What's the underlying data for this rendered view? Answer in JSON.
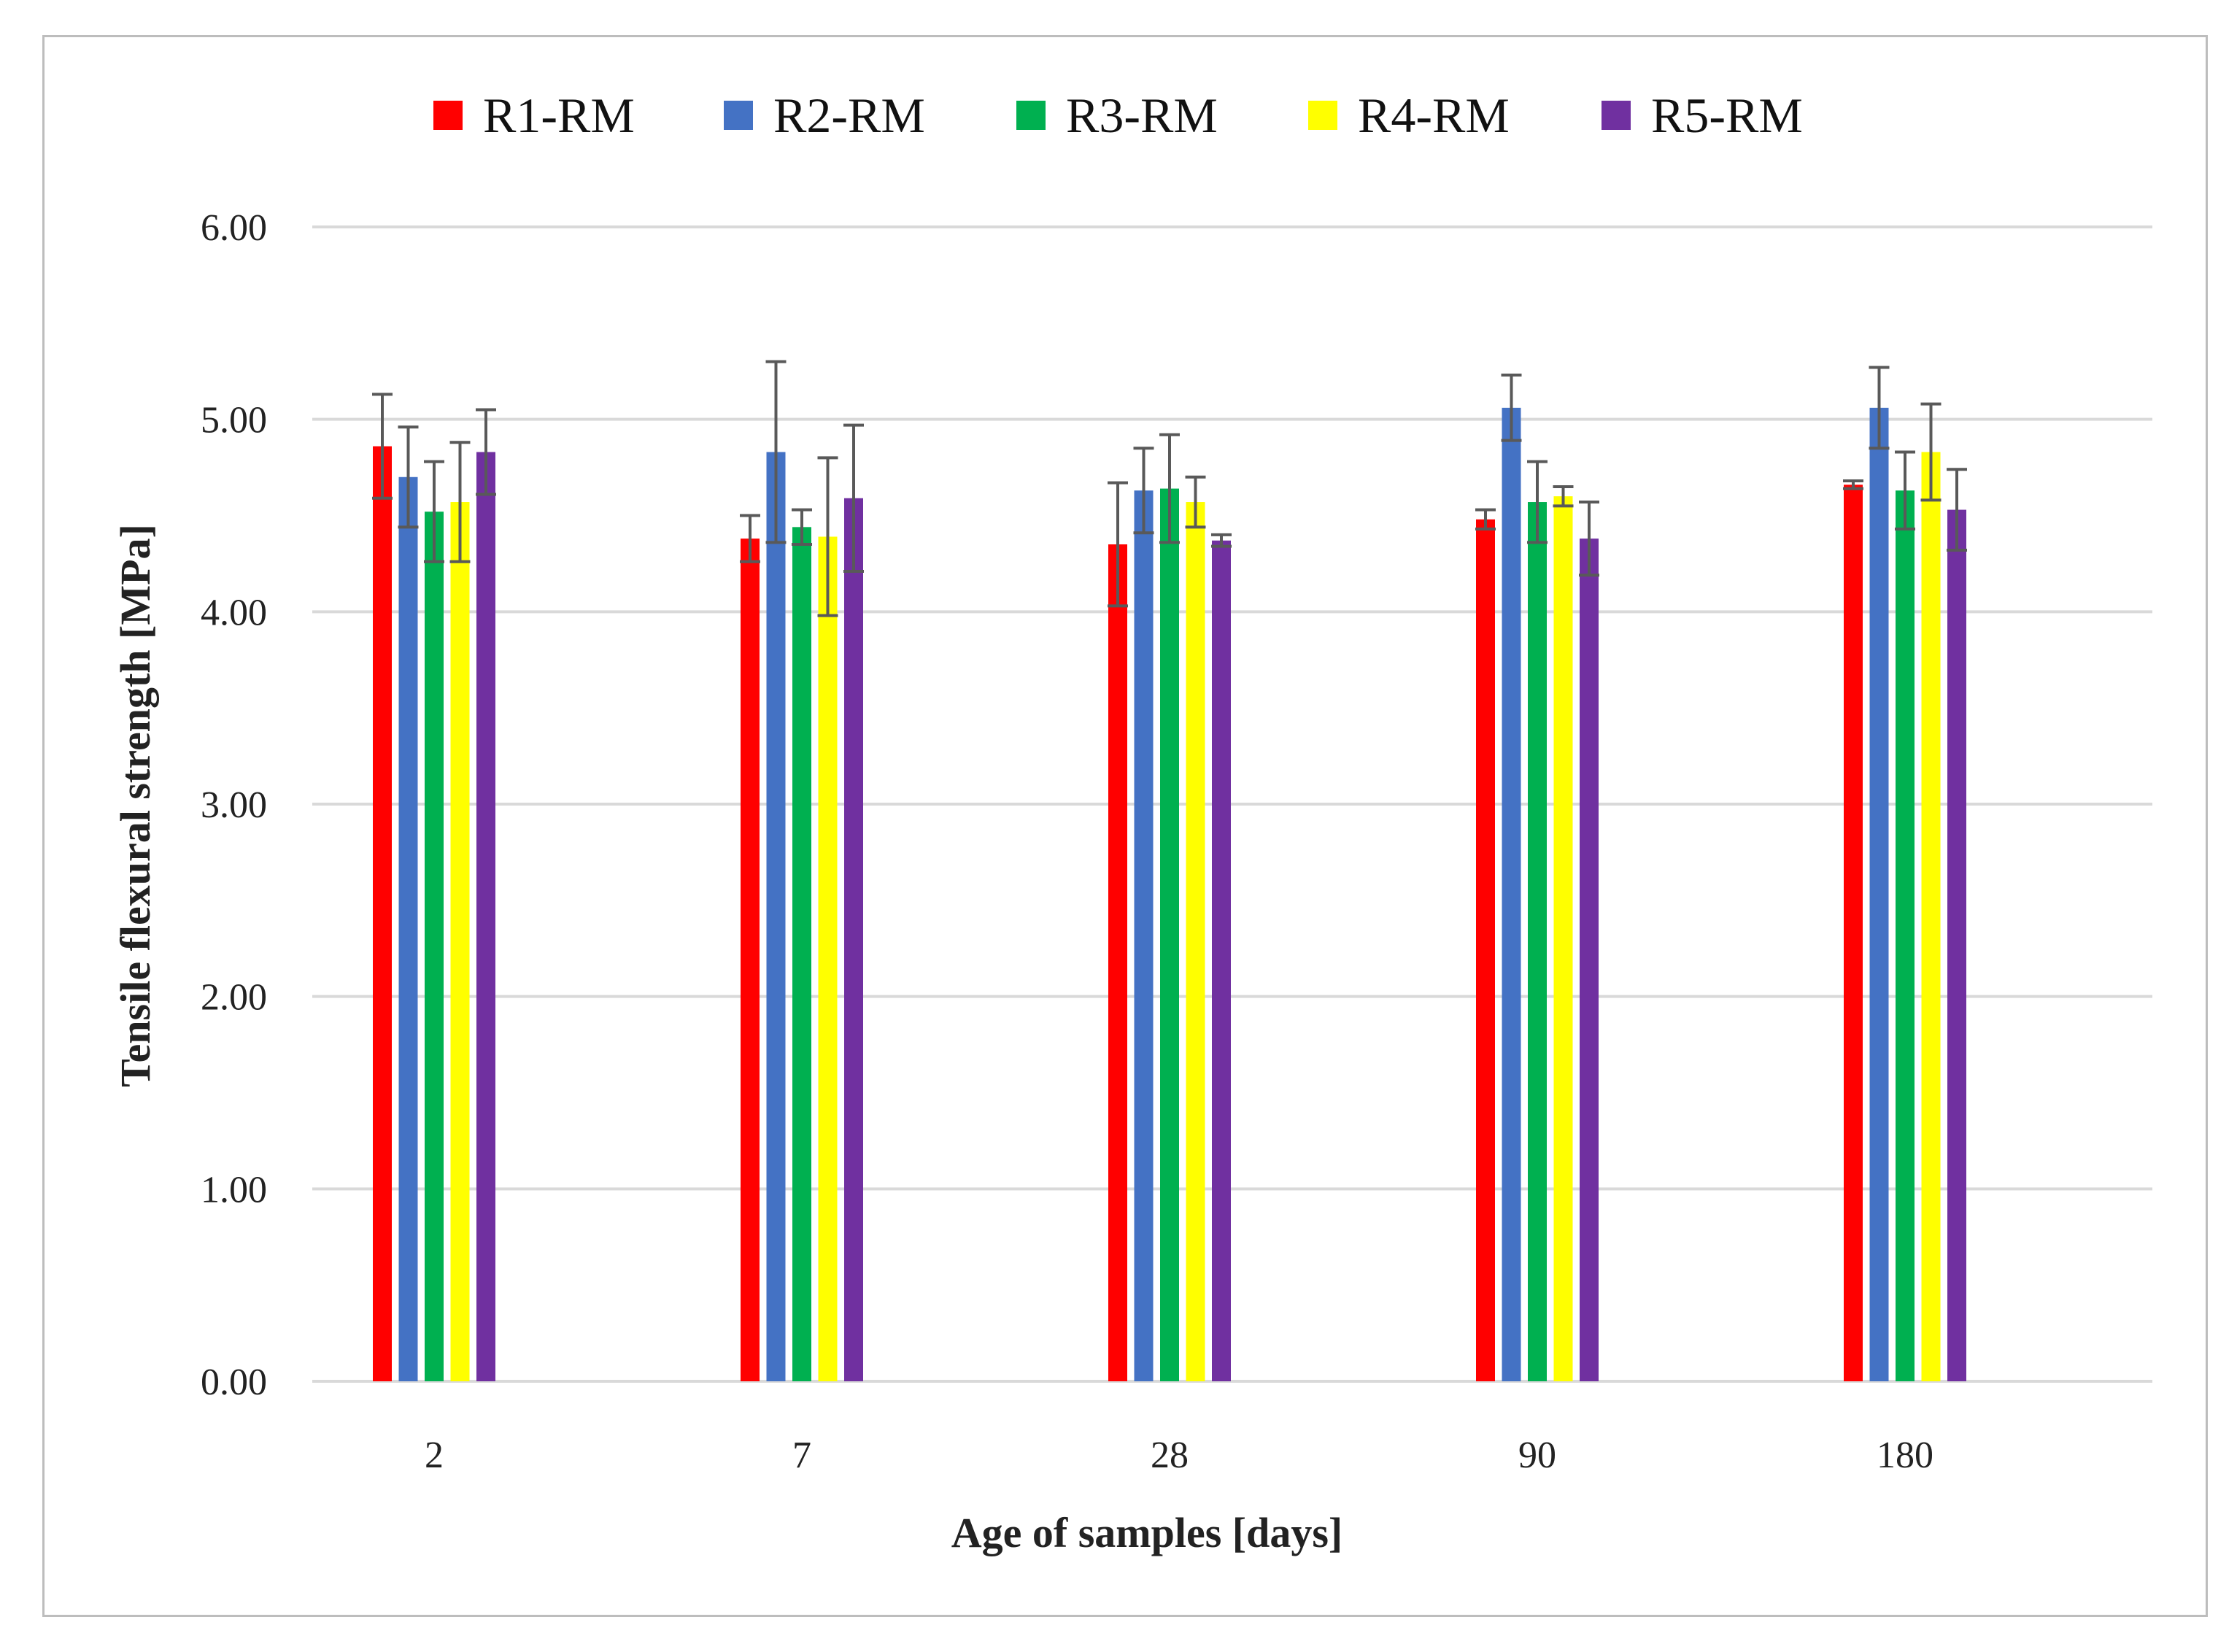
{
  "chart_data": {
    "type": "bar",
    "title": "",
    "xlabel": "Age of samples [days]",
    "ylabel": "Tensile flexural strength [MPa]",
    "ylim": [
      0,
      6
    ],
    "yticks": [
      "0.00",
      "1.00",
      "2.00",
      "3.00",
      "4.00",
      "5.00",
      "6.00"
    ],
    "categories": [
      "2",
      "7",
      "28",
      "90",
      "180"
    ],
    "grid": true,
    "legend_position": "top",
    "series": [
      {
        "name": "R1-RM",
        "color": "#ff0000",
        "values": [
          4.86,
          4.38,
          4.35,
          4.48,
          4.66
        ],
        "errors": [
          0.27,
          0.12,
          0.32,
          0.05,
          0.02
        ]
      },
      {
        "name": "R2-RM",
        "color": "#4472c4",
        "values": [
          4.7,
          4.83,
          4.63,
          5.06,
          5.06
        ],
        "errors": [
          0.26,
          0.47,
          0.22,
          0.17,
          0.21
        ]
      },
      {
        "name": "R3-RM",
        "color": "#00b050",
        "values": [
          4.52,
          4.44,
          4.64,
          4.57,
          4.63
        ],
        "errors": [
          0.26,
          0.09,
          0.28,
          0.21,
          0.2
        ]
      },
      {
        "name": "R4-RM",
        "color": "#ffff00",
        "values": [
          4.57,
          4.39,
          4.57,
          4.6,
          4.83
        ],
        "errors": [
          0.31,
          0.41,
          0.13,
          0.05,
          0.25
        ]
      },
      {
        "name": "R5-RM",
        "color": "#7030a0",
        "values": [
          4.83,
          4.59,
          4.37,
          4.38,
          4.53
        ],
        "errors": [
          0.22,
          0.38,
          0.03,
          0.19,
          0.21
        ]
      }
    ]
  }
}
